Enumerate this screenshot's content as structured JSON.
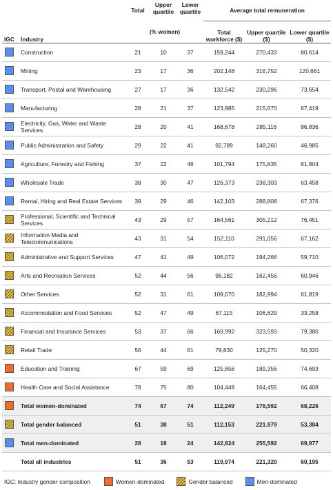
{
  "header": {
    "total": "Total",
    "upper_quartile": "Upper quartile",
    "lower_quartile": "Lower quartile",
    "avg_remuneration": "Average total remuneration",
    "pct_women": "(% women)",
    "igc": "IGC",
    "industry": "Industry",
    "total_workforce": "Total workforce ($)",
    "upper_quartile_dollars": "Upper quartile ($)",
    "lower_quartile_dollars": "Lower quartile ($)"
  },
  "rows": [
    {
      "igc": "men-dominated",
      "industry": "Construction",
      "total": "21",
      "upper": "10",
      "lower": "37",
      "tw": "159,244",
      "uq": "270,433",
      "lq": "80,614"
    },
    {
      "igc": "men-dominated",
      "industry": "Mining",
      "total": "23",
      "upper": "17",
      "lower": "36",
      "tw": "202,148",
      "uq": "316,752",
      "lq": "120,661"
    },
    {
      "igc": "men-dominated",
      "industry": "Transport, Postal and Warehousing",
      "total": "27",
      "upper": "17",
      "lower": "36",
      "tw": "132,542",
      "uq": "230,296",
      "lq": "73,654"
    },
    {
      "igc": "men-dominated",
      "industry": "Manufacturing",
      "total": "28",
      "upper": "21",
      "lower": "37",
      "tw": "123,985",
      "uq": "215,670",
      "lq": "67,419"
    },
    {
      "igc": "men-dominated",
      "industry": "Electricity, Gas, Water and Waste Services",
      "total": "28",
      "upper": "20",
      "lower": "41",
      "tw": "168,678",
      "uq": "285,116",
      "lq": "86,836"
    },
    {
      "igc": "men-dominated",
      "industry": "Public Administration and Safety",
      "total": "29",
      "upper": "22",
      "lower": "41",
      "tw": "92,789",
      "uq": "148,260",
      "lq": "46,985"
    },
    {
      "igc": "men-dominated",
      "industry": "Agriculture, Forestry and Fishing",
      "total": "37",
      "upper": "22",
      "lower": "46",
      "tw": "101,794",
      "uq": "175,835",
      "lq": "61,804"
    },
    {
      "igc": "men-dominated",
      "industry": "Wholesale Trade",
      "total": "38",
      "upper": "30",
      "lower": "47",
      "tw": "126,373",
      "uq": "238,303",
      "lq": "63,458"
    },
    {
      "igc": "men-dominated",
      "industry": "Rental, Hiring and Real Estate Services",
      "total": "39",
      "upper": "29",
      "lower": "46",
      "tw": "142,103",
      "uq": "288,808",
      "lq": "67,376"
    },
    {
      "igc": "gender-balanced",
      "industry": "Professional, Scientific and Technical Services",
      "total": "43",
      "upper": "29",
      "lower": "57",
      "tw": "164,561",
      "uq": "305,212",
      "lq": "76,451"
    },
    {
      "igc": "gender-balanced",
      "industry": "Information Media and Telecommunications",
      "total": "43",
      "upper": "31",
      "lower": "54",
      "tw": "152,110",
      "uq": "291,056",
      "lq": "67,162"
    },
    {
      "igc": "gender-balanced",
      "industry": "Administrative and Support Services",
      "total": "47",
      "upper": "41",
      "lower": "49",
      "tw": "106,072",
      "uq": "194,266",
      "lq": "59,710"
    },
    {
      "igc": "gender-balanced",
      "industry": "Arts and Recreation Services",
      "total": "52",
      "upper": "44",
      "lower": "56",
      "tw": "96,182",
      "uq": "162,456",
      "lq": "60,946"
    },
    {
      "igc": "gender-balanced",
      "industry": "Other Services",
      "total": "52",
      "upper": "31",
      "lower": "61",
      "tw": "109,070",
      "uq": "182,994",
      "lq": "61,819"
    },
    {
      "igc": "gender-balanced",
      "industry": "Accommodation and Food Services",
      "total": "52",
      "upper": "47",
      "lower": "49",
      "tw": "67,115",
      "uq": "106,629",
      "lq": "33,258"
    },
    {
      "igc": "gender-balanced",
      "industry": "Financial and Insurance Services",
      "total": "53",
      "upper": "37",
      "lower": "66",
      "tw": "169,992",
      "uq": "323,593",
      "lq": "79,380"
    },
    {
      "igc": "gender-balanced",
      "industry": "Retail Trade",
      "total": "56",
      "upper": "44",
      "lower": "61",
      "tw": "79,830",
      "uq": "125,270",
      "lq": "50,320"
    },
    {
      "igc": "women-dominated",
      "industry": "Education and Training",
      "total": "67",
      "upper": "59",
      "lower": "69",
      "tw": "125,656",
      "uq": "189,356",
      "lq": "74,693"
    },
    {
      "igc": "women-dominated",
      "industry": "Health Care and Social Assistance",
      "total": "78",
      "upper": "75",
      "lower": "80",
      "tw": "104,449",
      "uq": "164,455",
      "lq": "66,408"
    }
  ],
  "totals": [
    {
      "igc": "women-dominated",
      "industry": "Total women-dominated",
      "total": "74",
      "upper": "67",
      "lower": "74",
      "tw": "112,249",
      "uq": "176,592",
      "lq": "68,226"
    },
    {
      "igc": "gender-balanced",
      "industry": "Total gender balanced",
      "total": "51",
      "upper": "38",
      "lower": "51",
      "tw": "112,153",
      "uq": "221.979",
      "lq": "53,384"
    },
    {
      "igc": "men-dominated",
      "industry": "Total men-dominated",
      "total": "28",
      "upper": "18",
      "lower": "24",
      "tw": "142,824",
      "uq": "255,592",
      "lq": "69,977"
    }
  ],
  "all_industries": {
    "industry": "Total all industries",
    "total": "51",
    "upper": "36",
    "lower": "53",
    "tw": "119,974",
    "uq": "221,320",
    "lq": "60,195"
  },
  "legend": {
    "label": "IGC: Industry gender composition",
    "women": "Women-dominated",
    "balanced": "Gender balanced",
    "men": "Men-dominated"
  },
  "colors": {
    "men": "#5b8def",
    "women": "#f26a2c",
    "balanced": "#f4c430"
  }
}
